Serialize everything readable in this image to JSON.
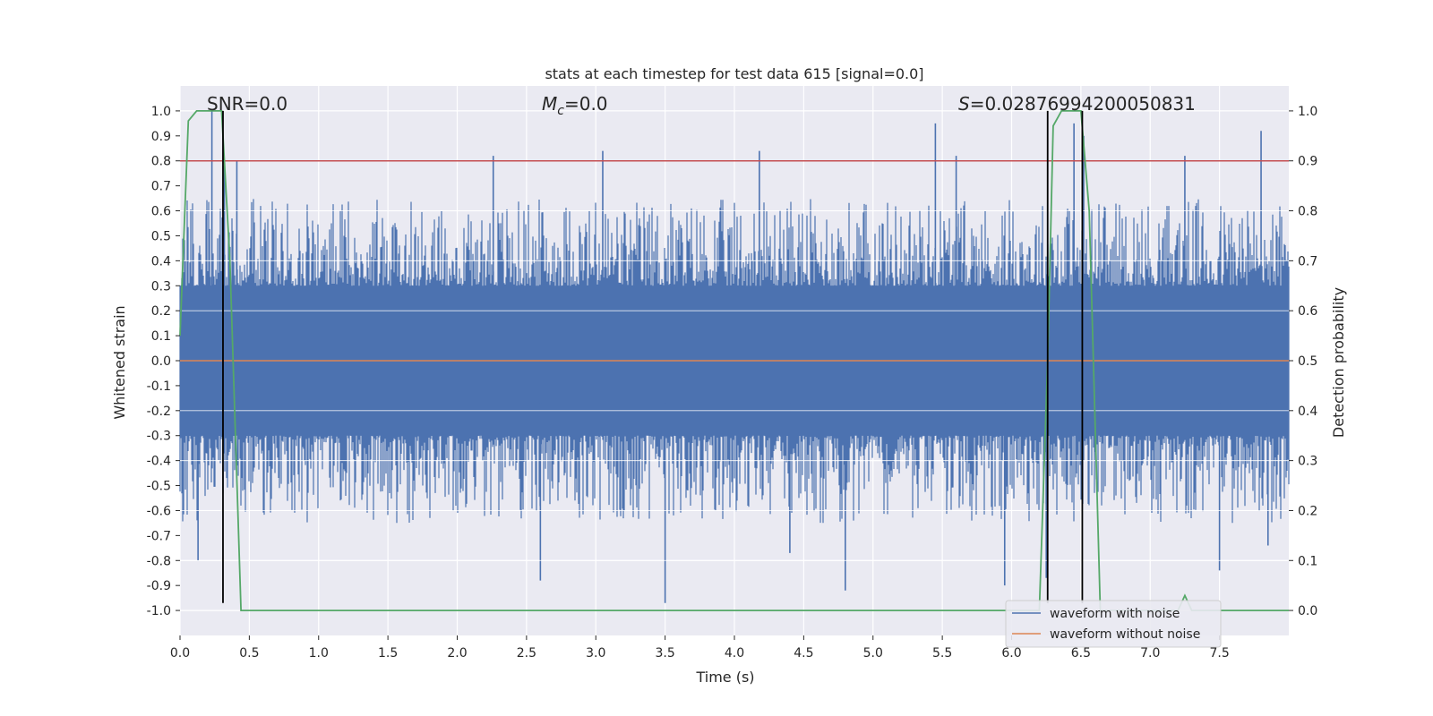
{
  "chart_data": {
    "type": "line",
    "title": "stats at each timestep for test data 615 [signal=0.0]",
    "xlabel": "Time (s)",
    "ylabel": "Whitened strain",
    "y2label": "Detection probability",
    "xlim": [
      0.0,
      8.0
    ],
    "ylim": [
      -1.1,
      1.1
    ],
    "y2lim": [
      -0.05,
      1.05
    ],
    "x_ticks": [
      0.0,
      0.5,
      1.0,
      1.5,
      2.0,
      2.5,
      3.0,
      3.5,
      4.0,
      4.5,
      5.0,
      5.5,
      6.0,
      6.5,
      7.0,
      7.5
    ],
    "x_tick_labels": [
      "0.0",
      "0.5",
      "1.0",
      "1.5",
      "2.0",
      "2.5",
      "3.0",
      "3.5",
      "4.0",
      "4.5",
      "5.0",
      "5.5",
      "6.0",
      "6.5",
      "7.0",
      "7.5"
    ],
    "y_ticks": [
      1.0,
      0.9,
      0.8,
      0.7,
      0.6,
      0.5,
      0.4,
      0.3,
      0.2,
      0.1,
      0.0,
      -0.1,
      -0.2,
      -0.3,
      -0.4,
      -0.5,
      -0.6,
      -0.7,
      -0.8,
      -0.9,
      -1.0
    ],
    "y_tick_labels": [
      "1.0",
      "0.9",
      "0.8",
      "0.7",
      "0.6",
      "0.5",
      "0.4",
      "0.3",
      "0.2",
      "0.1",
      "0.0",
      "-0.1",
      "-0.2",
      "-0.3",
      "-0.4",
      "-0.5",
      "-0.6",
      "-0.7",
      "-0.8",
      "-0.9",
      "-1.0"
    ],
    "y2_ticks": [
      1.0,
      0.9,
      0.8,
      0.7,
      0.6,
      0.5,
      0.4,
      0.3,
      0.2,
      0.1,
      0.0
    ],
    "y2_tick_labels": [
      "1.0",
      "0.9",
      "0.8",
      "0.7",
      "0.6",
      "0.5",
      "0.4",
      "0.3",
      "0.2",
      "0.1",
      "0.0"
    ],
    "grid": true,
    "legend_position": "lower right",
    "annotations": {
      "snr": "SNR=0.0",
      "mc_symbol": "M",
      "mc_subscript": "c",
      "mc_value": "=0.0",
      "s_symbol": "S",
      "s_value": "=0.02876994200050831"
    },
    "series": [
      {
        "name": "waveform with noise",
        "color": "#4c72b0",
        "description": "dense noise trace",
        "envelope_upper": [
          [
            0.0,
            0.45
          ],
          [
            0.5,
            0.45
          ],
          [
            1.0,
            0.4
          ],
          [
            1.5,
            0.4
          ],
          [
            2.0,
            0.4
          ],
          [
            2.5,
            0.42
          ],
          [
            3.0,
            0.45
          ],
          [
            3.5,
            0.4
          ],
          [
            4.0,
            0.45
          ],
          [
            4.5,
            0.45
          ],
          [
            5.0,
            0.45
          ],
          [
            5.5,
            0.45
          ],
          [
            6.0,
            0.45
          ],
          [
            6.5,
            0.45
          ],
          [
            7.0,
            0.45
          ],
          [
            7.5,
            0.45
          ],
          [
            8.0,
            0.45
          ]
        ],
        "peaks": [
          [
            0.23,
            1.0
          ],
          [
            0.32,
            0.78
          ],
          [
            0.41,
            0.8
          ],
          [
            2.26,
            0.82
          ],
          [
            3.05,
            0.84
          ],
          [
            4.18,
            0.84
          ],
          [
            5.45,
            0.95
          ],
          [
            5.6,
            0.82
          ],
          [
            6.45,
            0.95
          ],
          [
            6.52,
            0.9
          ],
          [
            7.25,
            0.82
          ],
          [
            7.8,
            0.92
          ],
          [
            0.13,
            -0.8
          ],
          [
            2.6,
            -0.88
          ],
          [
            3.5,
            -0.97
          ],
          [
            4.4,
            -0.77
          ],
          [
            4.8,
            -0.92
          ],
          [
            5.95,
            -0.9
          ],
          [
            6.25,
            -0.87
          ],
          [
            7.5,
            -0.84
          ],
          [
            7.85,
            -0.74
          ]
        ]
      },
      {
        "name": "waveform without noise",
        "color": "#dd8452",
        "y": 0.0
      },
      {
        "name": "detection probability",
        "color": "#55a868",
        "axis": "right",
        "points": [
          [
            0.0,
            0.55
          ],
          [
            0.06,
            0.98
          ],
          [
            0.12,
            1.0
          ],
          [
            0.3,
            1.0
          ],
          [
            0.36,
            0.7
          ],
          [
            0.44,
            0.0
          ],
          [
            1.0,
            0.0
          ],
          [
            6.2,
            0.0
          ],
          [
            6.26,
            0.5
          ],
          [
            6.3,
            0.97
          ],
          [
            6.36,
            1.0
          ],
          [
            6.5,
            1.0
          ],
          [
            6.56,
            0.8
          ],
          [
            6.64,
            0.0
          ],
          [
            7.2,
            0.0
          ],
          [
            7.25,
            0.03
          ],
          [
            7.3,
            0.0
          ],
          [
            8.0,
            0.0
          ]
        ]
      }
    ],
    "threshold_line": {
      "y2": 0.9,
      "color": "#c44e52"
    },
    "vertical_markers": [
      {
        "x": 0.31,
        "y_from": -0.97,
        "y_to": 1.0
      },
      {
        "x": 6.26,
        "y_from": -0.97,
        "y_to": 1.0
      },
      {
        "x": 6.51,
        "y_from": -0.97,
        "y_to": 1.0
      }
    ]
  }
}
